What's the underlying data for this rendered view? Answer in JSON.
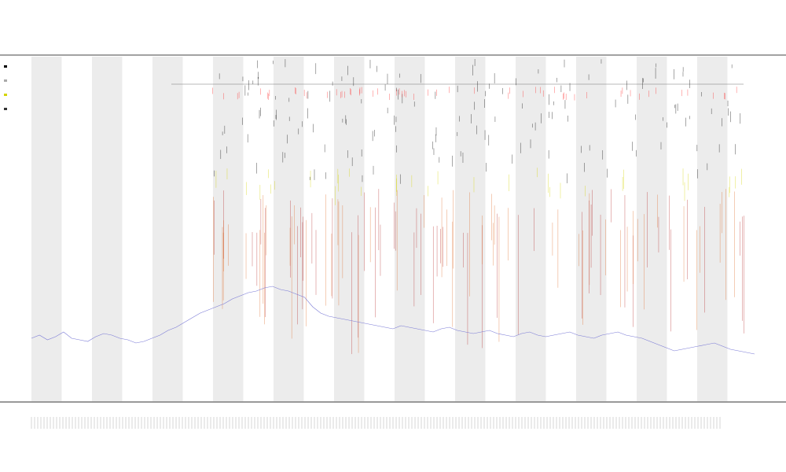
{
  "chart_data": {
    "type": "line",
    "title": "",
    "subtitle_1": "",
    "subtitle_2": "",
    "xlabel": "",
    "ylabel": "",
    "grid": false,
    "shaded_bands": 12,
    "background_band_color": "#ececec",
    "series": [
      {
        "color": "#7b7bd6",
        "values": [
          20,
          22,
          19,
          21,
          24,
          20,
          19,
          18,
          21,
          23,
          22,
          20,
          19,
          17,
          18,
          20,
          22,
          25,
          27,
          30,
          33,
          36,
          38,
          40,
          42,
          45,
          47,
          49,
          50,
          52,
          53,
          51,
          50,
          48,
          46,
          40,
          36,
          34,
          33,
          32,
          31,
          30,
          29,
          28,
          27,
          26,
          28,
          27,
          26,
          25,
          24,
          26,
          27,
          25,
          24,
          23,
          24,
          25,
          23,
          22,
          21,
          23,
          24,
          22,
          21,
          22,
          23,
          24,
          22,
          21,
          20,
          22,
          23,
          24,
          22,
          21,
          20,
          18,
          16,
          14,
          12,
          13,
          14,
          15,
          16,
          17,
          15,
          13,
          12,
          11,
          10
        ]
      }
    ],
    "spike_colors": [
      "#000000",
      "#ff2a2a",
      "#d4d400",
      "#e07030",
      "#b83030"
    ],
    "legend_colors": [
      "#000000",
      "#aaaaaa",
      "#d4d400",
      "#333333"
    ]
  }
}
